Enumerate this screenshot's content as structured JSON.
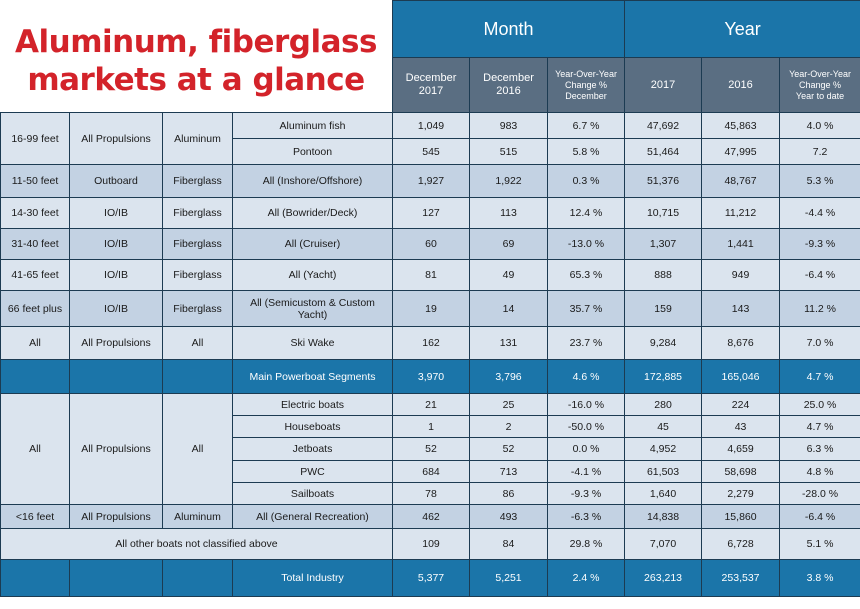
{
  "title_line1": "Aluminum, fiberglass",
  "title_line2": "markets at a glance",
  "month_label": "Month",
  "year_label": "Year",
  "col_dec2017": "December 2017",
  "col_dec2016": "December 2016",
  "col_yoy_dec_1": "Year-Over-Year",
  "col_yoy_dec_2": "Change %",
  "col_yoy_dec_3": "December",
  "col_2017": "2017",
  "col_2016": "2016",
  "col_yoy_ytd_1": "Year-Over-Year",
  "col_yoy_ytd_2": "Change %",
  "col_yoy_ytd_3": "Year to date",
  "rows": {
    "r1": {
      "size": "16-99 feet",
      "prop": "All Propulsions",
      "mat": "Aluminum",
      "seg": "Aluminum fish",
      "m17": "1,049",
      "m16": "983",
      "mc": "6.7 %",
      "y17": "47,692",
      "y16": "45,863",
      "yc": "4.0 %"
    },
    "r2": {
      "seg": "Pontoon",
      "m17": "545",
      "m16": "515",
      "mc": "5.8 %",
      "y17": "51,464",
      "y16": "47,995",
      "yc": "7.2"
    },
    "r3": {
      "size": "11-50 feet",
      "prop": "Outboard",
      "mat": "Fiberglass",
      "seg": "All (Inshore/Offshore)",
      "m17": "1,927",
      "m16": "1,922",
      "mc": "0.3 %",
      "y17": "51,376",
      "y16": "48,767",
      "yc": "5.3 %"
    },
    "r4": {
      "size": "14-30 feet",
      "prop": "IO/IB",
      "mat": "Fiberglass",
      "seg": "All (Bowrider/Deck)",
      "m17": "127",
      "m16": "113",
      "mc": "12.4 %",
      "y17": "10,715",
      "y16": "11,212",
      "yc": "-4.4 %"
    },
    "r5": {
      "size": "31-40 feet",
      "prop": "IO/IB",
      "mat": "Fiberglass",
      "seg": "All (Cruiser)",
      "m17": "60",
      "m16": "69",
      "mc": "-13.0 %",
      "y17": "1,307",
      "y16": "1,441",
      "yc": "-9.3 %"
    },
    "r6": {
      "size": "41-65 feet",
      "prop": "IO/IB",
      "mat": "Fiberglass",
      "seg": "All (Yacht)",
      "m17": "81",
      "m16": "49",
      "mc": "65.3 %",
      "y17": "888",
      "y16": "949",
      "yc": "-6.4 %"
    },
    "r7": {
      "size": "66 feet plus",
      "prop": "IO/IB",
      "mat": "Fiberglass",
      "seg": "All (Semicustom & Custom Yacht)",
      "m17": "19",
      "m16": "14",
      "mc": "35.7 %",
      "y17": "159",
      "y16": "143",
      "yc": "11.2 %"
    },
    "r8": {
      "size": "All",
      "prop": "All Propulsions",
      "mat": "All",
      "seg": "Ski Wake",
      "m17": "162",
      "m16": "131",
      "mc": "23.7 %",
      "y17": "9,284",
      "y16": "8,676",
      "yc": "7.0 %"
    },
    "r9": {
      "seg": "Main Powerboat Segments",
      "m17": "3,970",
      "m16": "3,796",
      "mc": "4.6 %",
      "y17": "172,885",
      "y16": "165,046",
      "yc": "4.7 %"
    },
    "r10": {
      "size": "All",
      "prop": "All Propulsions",
      "mat": "All",
      "seg": "Electric boats",
      "m17": "21",
      "m16": "25",
      "mc": "-16.0 %",
      "y17": "280",
      "y16": "224",
      "yc": "25.0 %"
    },
    "r11": {
      "seg": "Houseboats",
      "m17": "1",
      "m16": "2",
      "mc": "-50.0 %",
      "y17": "45",
      "y16": "43",
      "yc": "4.7 %"
    },
    "r12": {
      "seg": "Jetboats",
      "m17": "52",
      "m16": "52",
      "mc": "0.0 %",
      "y17": "4,952",
      "y16": "4,659",
      "yc": "6.3 %"
    },
    "r13": {
      "seg": "PWC",
      "m17": "684",
      "m16": "713",
      "mc": "-4.1 %",
      "y17": "61,503",
      "y16": "58,698",
      "yc": "4.8 %"
    },
    "r14": {
      "seg": "Sailboats",
      "m17": "78",
      "m16": "86",
      "mc": "-9.3 %",
      "y17": "1,640",
      "y16": "2,279",
      "yc": "-28.0 %"
    },
    "r15": {
      "size": "<16 feet",
      "prop": "All Propulsions",
      "mat": "Aluminum",
      "seg": "All (General Recreation)",
      "m17": "462",
      "m16": "493",
      "mc": "-6.3 %",
      "y17": "14,838",
      "y16": "15,860",
      "yc": "-6.4 %"
    },
    "r16": {
      "seg": "All other boats not classified above",
      "m17": "109",
      "m16": "84",
      "mc": "29.8 %",
      "y17": "7,070",
      "y16": "6,728",
      "yc": "5.1 %"
    },
    "r17": {
      "seg": "Total Industry",
      "m17": "5,377",
      "m16": "5,251",
      "mc": "2.4 %",
      "y17": "263,213",
      "y16": "253,537",
      "yc": "3.8 %"
    }
  },
  "colors": {
    "header_blue": "#1b75a9",
    "subheader_gray": "#5a6e82",
    "title_red": "#d3232a",
    "row_light": "#dbe4ee",
    "row_mid": "#c3d2e3"
  }
}
